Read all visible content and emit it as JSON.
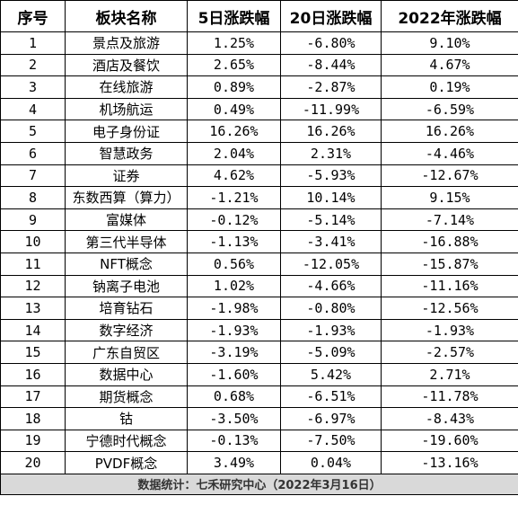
{
  "table": {
    "headers": [
      "序号",
      "板块名称",
      "5日涨跌幅",
      "20日涨跌幅",
      "2022年涨跌幅"
    ],
    "rows": [
      {
        "no": "1",
        "name": "景点及旅游",
        "d5": "1.25%",
        "d20": "-6.80%",
        "ytd": "9.10%"
      },
      {
        "no": "2",
        "name": "酒店及餐饮",
        "d5": "2.65%",
        "d20": "-8.44%",
        "ytd": "4.67%"
      },
      {
        "no": "3",
        "name": "在线旅游",
        "d5": "0.89%",
        "d20": "-2.87%",
        "ytd": "0.19%"
      },
      {
        "no": "4",
        "name": "机场航运",
        "d5": "0.49%",
        "d20": "-11.99%",
        "ytd": "-6.59%"
      },
      {
        "no": "5",
        "name": "电子身份证",
        "d5": "16.26%",
        "d20": "16.26%",
        "ytd": "16.26%"
      },
      {
        "no": "6",
        "name": "智慧政务",
        "d5": "2.04%",
        "d20": "2.31%",
        "ytd": "-4.46%"
      },
      {
        "no": "7",
        "name": "证券",
        "d5": "4.62%",
        "d20": "-5.93%",
        "ytd": "-12.67%"
      },
      {
        "no": "8",
        "name": "东数西算（算力）",
        "d5": "-1.21%",
        "d20": "10.14%",
        "ytd": "9.15%"
      },
      {
        "no": "9",
        "name": "富媒体",
        "d5": "-0.12%",
        "d20": "-5.14%",
        "ytd": "-7.14%"
      },
      {
        "no": "10",
        "name": "第三代半导体",
        "d5": "-1.13%",
        "d20": "-3.41%",
        "ytd": "-16.88%"
      },
      {
        "no": "11",
        "name": "NFT概念",
        "d5": "0.56%",
        "d20": "-12.05%",
        "ytd": "-15.87%"
      },
      {
        "no": "12",
        "name": "钠离子电池",
        "d5": "1.02%",
        "d20": "-4.66%",
        "ytd": "-11.16%"
      },
      {
        "no": "13",
        "name": "培育钻石",
        "d5": "-1.98%",
        "d20": "-0.80%",
        "ytd": "-12.56%"
      },
      {
        "no": "14",
        "name": "数字经济",
        "d5": "-1.93%",
        "d20": "-1.93%",
        "ytd": "-1.93%"
      },
      {
        "no": "15",
        "name": "广东自贸区",
        "d5": "-3.19%",
        "d20": "-5.09%",
        "ytd": "-2.57%"
      },
      {
        "no": "16",
        "name": "数据中心",
        "d5": "-1.60%",
        "d20": "5.42%",
        "ytd": "2.71%"
      },
      {
        "no": "17",
        "name": "期货概念",
        "d5": "0.68%",
        "d20": "-6.51%",
        "ytd": "-11.78%"
      },
      {
        "no": "18",
        "name": "钴",
        "d5": "-3.50%",
        "d20": "-6.97%",
        "ytd": "-8.43%"
      },
      {
        "no": "19",
        "name": "宁德时代概念",
        "d5": "-0.13%",
        "d20": "-7.50%",
        "ytd": "-19.60%"
      },
      {
        "no": "20",
        "name": "PVDF概念",
        "d5": "3.49%",
        "d20": "0.04%",
        "ytd": "-13.16%"
      }
    ],
    "footer": "数据统计：七禾研究中心（2022年3月16日）"
  }
}
